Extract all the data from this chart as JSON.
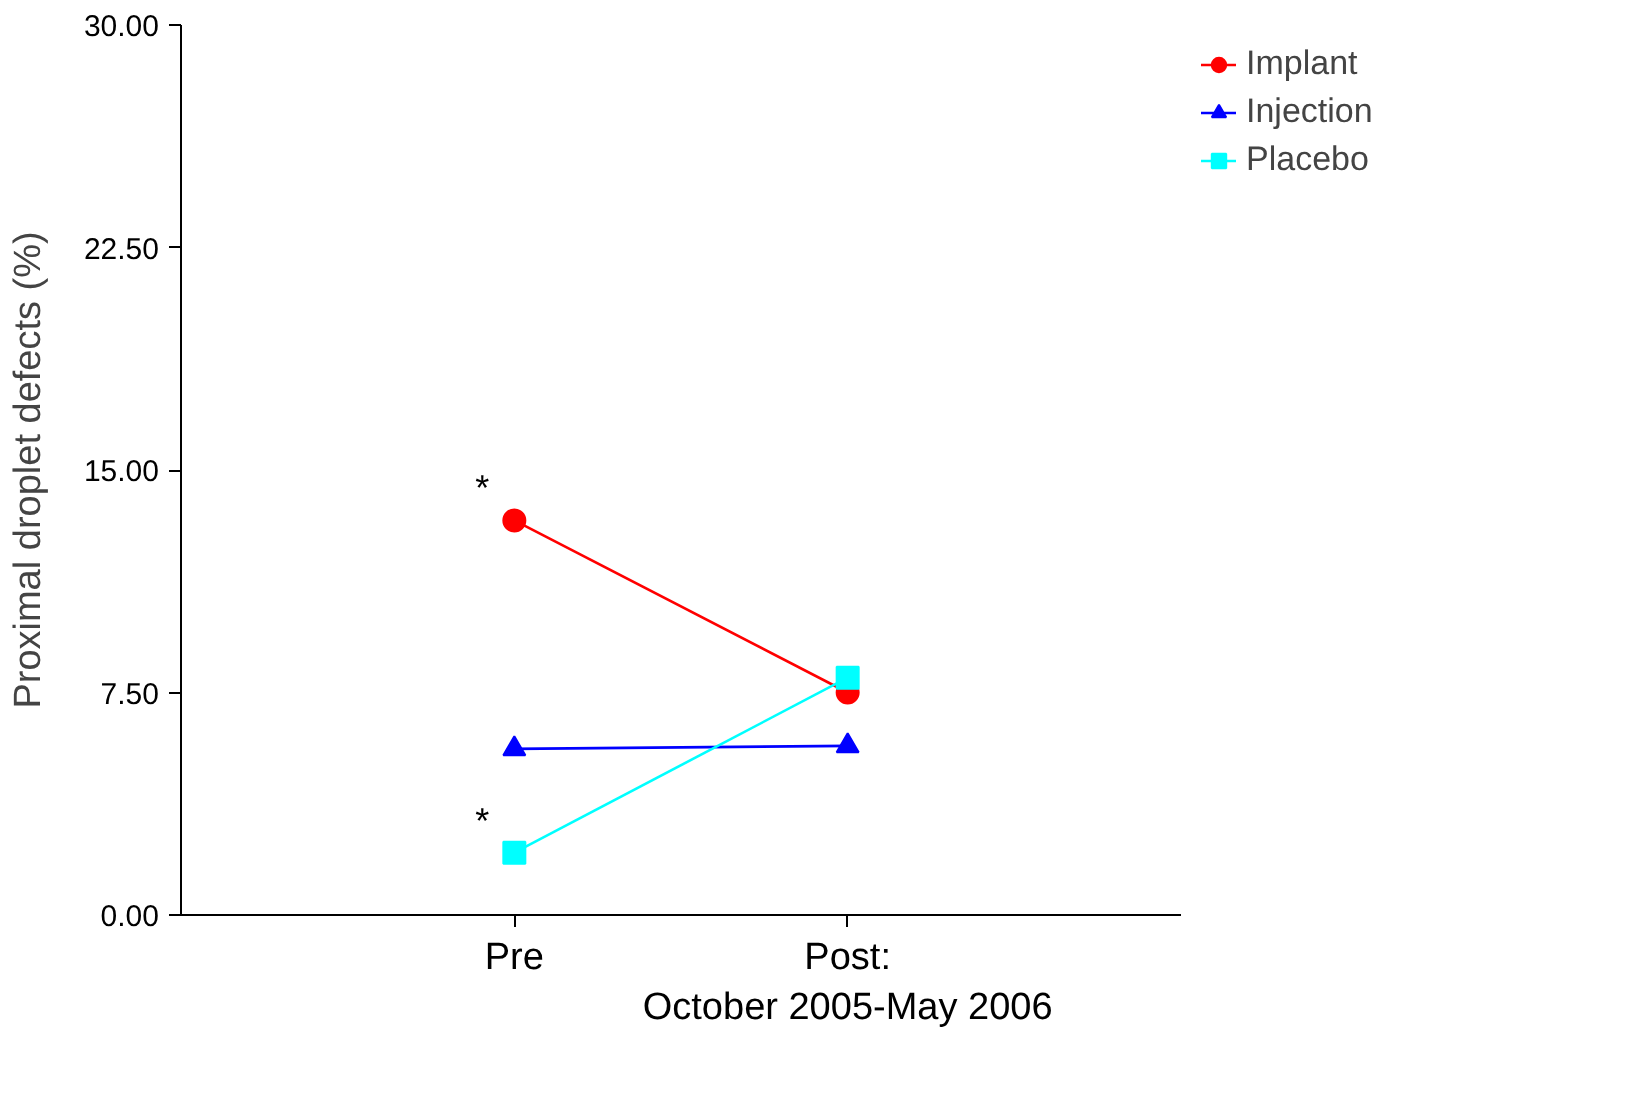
{
  "chart_data": {
    "type": "line",
    "ylabel": "Proximal droplet defects (%)",
    "categories": [
      "Pre",
      "Post:\nOctober 2005-May 2006"
    ],
    "series": [
      {
        "name": "Implant",
        "color": "#ff0000",
        "values": [
          13.3,
          7.5
        ],
        "marker": "circle"
      },
      {
        "name": "Injection",
        "color": "#0000ff",
        "values": [
          5.6,
          5.7
        ],
        "marker": "triangle"
      },
      {
        "name": "Placebo",
        "color": "#00ffff",
        "values": [
          2.1,
          8.0
        ],
        "marker": "square"
      }
    ],
    "ylim": [
      0,
      30
    ],
    "yticks": [
      {
        "value": 0,
        "label": "0.00"
      },
      {
        "value": 7.5,
        "label": "7.50"
      },
      {
        "value": 15,
        "label": "15.00"
      },
      {
        "value": 22.5,
        "label": "22.50"
      },
      {
        "value": 30,
        "label": "30.00"
      }
    ],
    "annotations": [
      {
        "text": "*",
        "x": "Pre",
        "y": 13.3
      },
      {
        "text": "*",
        "x": "Pre",
        "y": 2.1
      }
    ],
    "grid": false,
    "legend": "top right",
    "line_style": "solid"
  }
}
